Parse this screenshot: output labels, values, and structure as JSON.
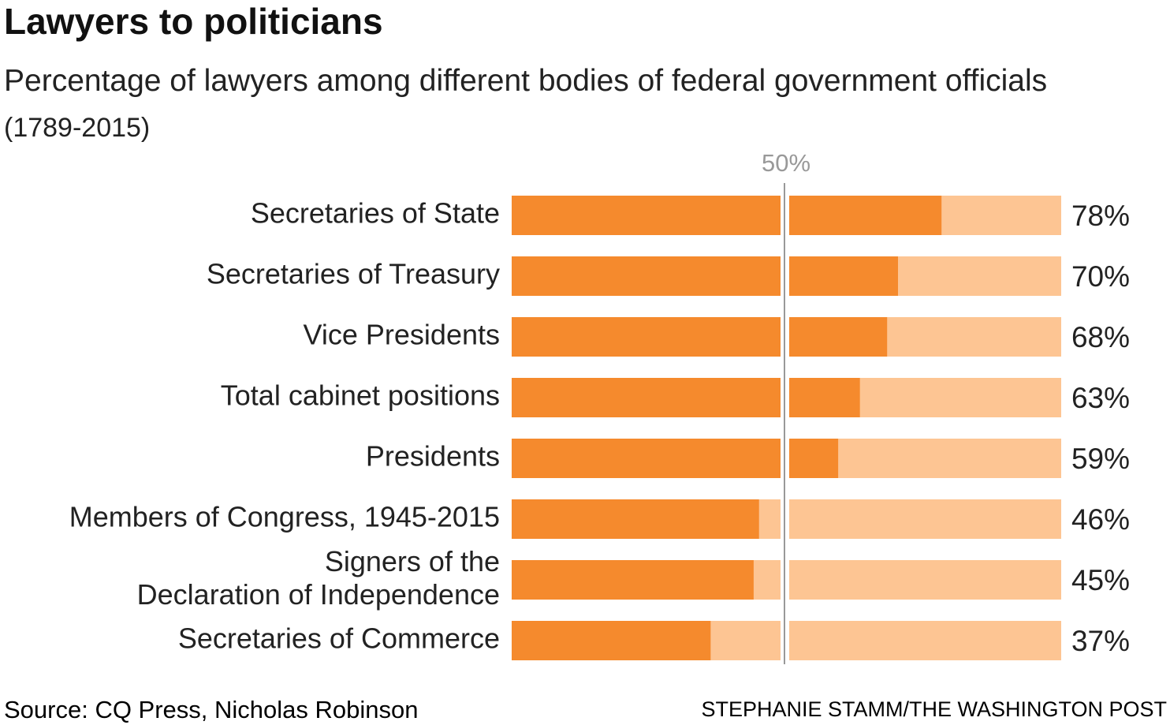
{
  "chart_data": {
    "type": "bar",
    "title": "Lawyers to politicians",
    "subtitle": "Percentage of lawyers among different bodies of federal government officials",
    "subtitle_years": "(1789-2015)",
    "categories": [
      "Secretaries of State",
      "Secretaries of Treasury",
      "Vice Presidents",
      "Total cabinet positions",
      "Presidents",
      "Members of Congress, 1945-2015",
      "Signers of the\nDeclaration of Independence",
      "Secretaries of Commerce"
    ],
    "values": [
      78,
      70,
      68,
      63,
      59,
      46,
      45,
      37
    ],
    "value_labels": [
      "78%",
      "70%",
      "68%",
      "63%",
      "59%",
      "46%",
      "45%",
      "37%"
    ],
    "xlim": [
      0,
      100
    ],
    "xticks": [
      {
        "value": 50,
        "label": "50%"
      }
    ],
    "color": "#f58a2d",
    "background_color": "#fdc593",
    "source": "Source: CQ Press, Nicholas Robinson",
    "credit": "STEPHANIE STAMM/THE WASHINGTON POST"
  }
}
